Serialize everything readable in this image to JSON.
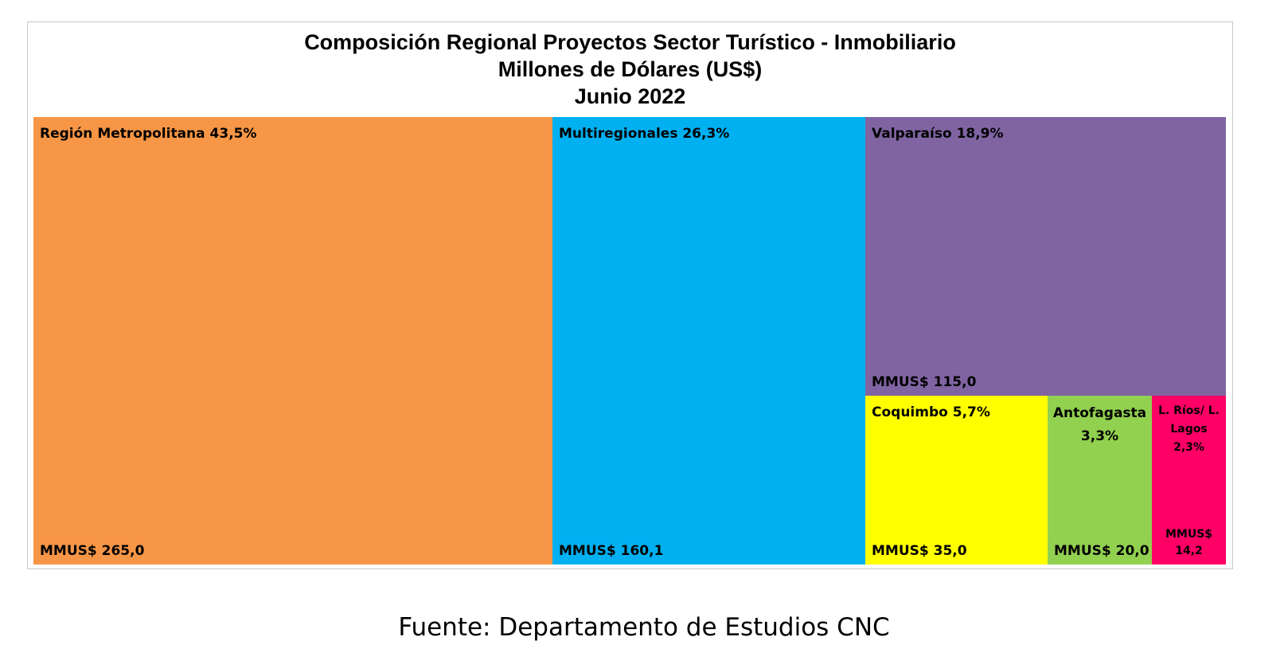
{
  "chart_data": {
    "type": "treemap",
    "title": "Composición Regional Proyectos Sector Turístico - Inmobiliario",
    "subtitle_1": "Millones de Dólares (US$)",
    "subtitle_2": "Junio 2022",
    "unit_prefix": "MMUS$",
    "items": [
      {
        "label": "Región Metropolitana 43,5%",
        "value_text": "MMUS$ 265,0",
        "value": 265.0,
        "color": "#F79646"
      },
      {
        "label": "Multiregionales 26,3%",
        "value_text": "MMUS$ 160,1",
        "value": 160.1,
        "color": "#00B0F0"
      },
      {
        "label": "Valparaíso 18,9%",
        "value_text": "MMUS$ 115,0",
        "value": 115.0,
        "color": "#8064A2"
      },
      {
        "label": "Coquimbo 5,7%",
        "value_text": "MMUS$ 35,0",
        "value": 35.0,
        "color": "#FFFF00"
      },
      {
        "label_lines": [
          "Antofagasta",
          "3,3%"
        ],
        "value_text": "MMUS$ 20,0",
        "value": 20.0,
        "color": "#92D050"
      },
      {
        "label_lines": [
          "L.  Ríos/ L.",
          "Lagos",
          "2,3%"
        ],
        "value_lines": [
          "MMUS$",
          "14,2"
        ],
        "value": 14.2,
        "color": "#FF0066"
      }
    ]
  },
  "source": "Fuente: Departamento de Estudios CNC"
}
